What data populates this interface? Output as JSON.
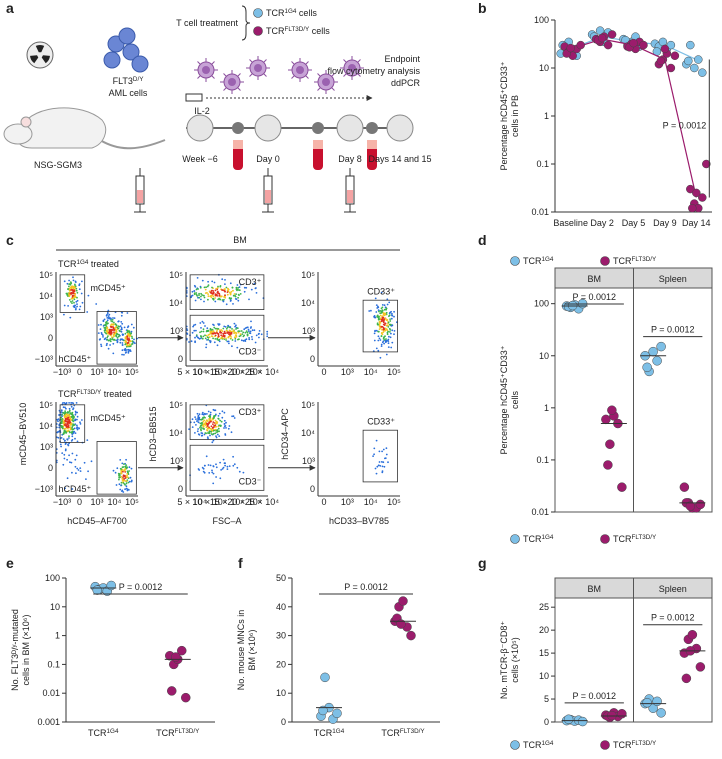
{
  "panel_labels": [
    "a",
    "b",
    "c",
    "d",
    "e",
    "f",
    "g"
  ],
  "schematic": {
    "treatment": "T cell treatment",
    "treatment_legend": [
      {
        "text": "TCR",
        "sup": "1G4",
        "suffix": " cells"
      },
      {
        "text": "TCR",
        "sup": "FLT3D/Y",
        "suffix": " cells"
      }
    ],
    "aml": {
      "text": "FLT3",
      "sup": "D/Y",
      "line2": "AML cells"
    },
    "mouse": "NSG-SGM3",
    "il2": "IL-2",
    "endpoint": [
      "Endpoint",
      "flow cytometry analysis",
      "ddPCR"
    ],
    "timepoints": [
      "Week −6",
      "Day 0",
      "Day 8",
      "Days 14 and 15"
    ]
  },
  "flow": {
    "tissue": "BM",
    "rows": [
      {
        "text": "TCR",
        "sup": "1G4",
        "suffix": " treated"
      },
      {
        "text": "TCR",
        "sup": "FLT3D/Y",
        "suffix": " treated"
      }
    ],
    "columns": [
      {
        "ylabel": "mCD45–BV510",
        "xlabel": "hCD45–AF700",
        "yticks": [
          "10⁵",
          "10⁴",
          "10³",
          "0",
          "−10³"
        ],
        "xticks": [
          "−10³",
          "0",
          "10³",
          "10⁴",
          "10⁵"
        ],
        "gates": [
          "mCD45⁺",
          "hCD45⁺"
        ]
      },
      {
        "ylabel": "hCD3–BB515",
        "xlabel": "FSC–A",
        "yticks": [
          "10⁵",
          "10⁴",
          "10³",
          "0"
        ],
        "xticks": [
          "5 × 10⁴",
          "10 × 10⁴",
          "15 × 10⁴",
          "20 × 10⁴",
          "25 × 10⁴"
        ],
        "gates": [
          "CD3⁺",
          "CD3⁻"
        ]
      },
      {
        "ylabel": "hCD34–APC",
        "xlabel": "hCD33–BV785",
        "yticks": [
          "10⁵",
          "10⁴",
          "10³",
          "0"
        ],
        "xticks": [
          "0",
          "10³",
          "10⁴",
          "10⁵"
        ],
        "gates": [
          "CD33⁺"
        ]
      }
    ]
  },
  "chart_data": [
    {
      "type": "line",
      "ylabel": [
        "Percentage hCD45⁺CD33⁺",
        "cells in PB"
      ],
      "yscale": "log",
      "ylim": [
        0.01,
        100
      ],
      "yticks": [
        0.01,
        0.1,
        1,
        10,
        100
      ],
      "categories": [
        "Baseline",
        "Day 2",
        "Day 5",
        "Day 9",
        "Day 14"
      ],
      "series": [
        {
          "name": "TCR",
          "sup": "1G4",
          "color": "#7dbfe6",
          "values": [
            25,
            45,
            35,
            30,
            15
          ],
          "points": [
            [
              20,
              28,
              35,
              25,
              18,
              30
            ],
            [
              50,
              40,
              60,
              35,
              55,
              45
            ],
            [
              40,
              30,
              35,
              45,
              28,
              38
            ],
            [
              32,
              28,
              35,
              25,
              30,
              22
            ],
            [
              12,
              30,
              10,
              15,
              8,
              14
            ]
          ]
        },
        {
          "name": "TCR",
          "sup": "FLT3D/Y",
          "color": "#9b1c6c",
          "values": [
            25,
            40,
            30,
            15,
            0.02
          ],
          "points": [
            [
              28,
              22,
              18,
              25,
              30,
              20,
              26
            ],
            [
              40,
              35,
              45,
              30,
              50,
              38,
              42
            ],
            [
              28,
              32,
              25,
              35,
              30,
              27,
              33
            ],
            [
              12,
              15,
              20,
              10,
              18,
              14,
              25
            ],
            [
              0.03,
              0.015,
              0.012,
              0.02,
              0.1,
              0.012,
              0.025
            ]
          ]
        }
      ],
      "annotation": "P = 0.0012",
      "legend": true
    },
    {
      "type": "dot",
      "ylabel": [
        "Percentage hCD45⁺CD33⁺",
        "cells"
      ],
      "yscale": "log",
      "ylim": [
        0.01,
        200
      ],
      "yticks": [
        0.01,
        0.1,
        1,
        10,
        100
      ],
      "categories": [
        "BM",
        "Spleen"
      ],
      "series": [
        {
          "name": "TCR",
          "sup": "1G4",
          "color": "#7dbfe6",
          "values": [
            [
              90,
              85,
              95,
              80,
              100,
              88,
              92
            ],
            [
              10,
              5,
              12,
              8,
              15,
              6
            ]
          ],
          "means": [
            90,
            10
          ]
        },
        {
          "name": "TCR",
          "sup": "FLT3D/Y",
          "color": "#9b1c6c",
          "values": [
            [
              0.6,
              0.2,
              0.7,
              0.5,
              0.03,
              0.08,
              0.9
            ],
            [
              0.03,
              0.015,
              0.012,
              0.012,
              0.014,
              0.015,
              0.013
            ]
          ],
          "means": [
            0.5,
            0.015
          ]
        }
      ],
      "annotations": [
        "P = 0.0012",
        "P = 0.0012"
      ],
      "legend": true
    },
    {
      "type": "dot",
      "ylabel": [
        "No. FLT3ᴰ/ʸ-mutated",
        "cells in BM (×10⁶)"
      ],
      "yscale": "log",
      "ylim": [
        0.001,
        100
      ],
      "yticks": [
        0.001,
        0.01,
        0.1,
        1,
        10,
        100
      ],
      "series": [
        {
          "name": "TCR",
          "sup": "1G4",
          "color": "#7dbfe6",
          "values": [
            [
              50,
              40,
              45,
              35,
              55,
              38
            ]
          ],
          "means": [
            45
          ]
        },
        {
          "name": "TCR",
          "sup": "FLT3D/Y",
          "color": "#9b1c6c",
          "values": [
            [
              0.2,
              0.1,
              0.15,
              0.3,
              0.007,
              0.012,
              0.18
            ]
          ],
          "means": [
            0.15
          ]
        }
      ],
      "annotations": [
        "P = 0.0012"
      ],
      "legend": false
    },
    {
      "type": "dot",
      "ylabel": [
        "No. mouse MNCs in",
        "BM (×10⁶)"
      ],
      "ylim": [
        0,
        50
      ],
      "yticks": [
        0,
        10,
        20,
        30,
        40,
        50
      ],
      "series": [
        {
          "name": "TCR",
          "sup": "1G4",
          "color": "#7dbfe6",
          "values": [
            [
              2,
              15.5,
              5,
              1,
              3,
              4
            ]
          ],
          "means": [
            5
          ]
        },
        {
          "name": "TCR",
          "sup": "FLT3D/Y",
          "color": "#9b1c6c",
          "values": [
            [
              35,
              40,
              42,
              33,
              30,
              36,
              34
            ]
          ],
          "means": [
            35
          ]
        }
      ],
      "annotations": [
        "P = 0.0012"
      ],
      "legend": false
    },
    {
      "type": "dot",
      "ylabel": [
        "No. mTCR-β⁻CD8⁺",
        "cells (×10⁵)"
      ],
      "ylim": [
        0,
        27
      ],
      "yticks": [
        0,
        5,
        10,
        15,
        20,
        25
      ],
      "categories": [
        "BM",
        "Spleen"
      ],
      "series": [
        {
          "name": "TCR",
          "sup": "1G4",
          "color": "#7dbfe6",
          "values": [
            [
              0.3,
              0.5,
              0.2,
              0.4,
              0.1,
              0.6
            ],
            [
              4,
              5,
              3,
              4.5,
              2,
              4.2
            ]
          ],
          "means": [
            0.3,
            4
          ]
        },
        {
          "name": "TCR",
          "sup": "FLT3D/Y",
          "color": "#9b1c6c",
          "values": [
            [
              1.5,
              1,
              2,
              1.2,
              1.8,
              1.3,
              1.4
            ],
            [
              15,
              18,
              19,
              16,
              12,
              9.5,
              15.5
            ]
          ],
          "means": [
            1.3,
            15.5
          ]
        }
      ],
      "annotations": [
        "P = 0.0012",
        "P = 0.0012"
      ],
      "legend": true
    }
  ]
}
